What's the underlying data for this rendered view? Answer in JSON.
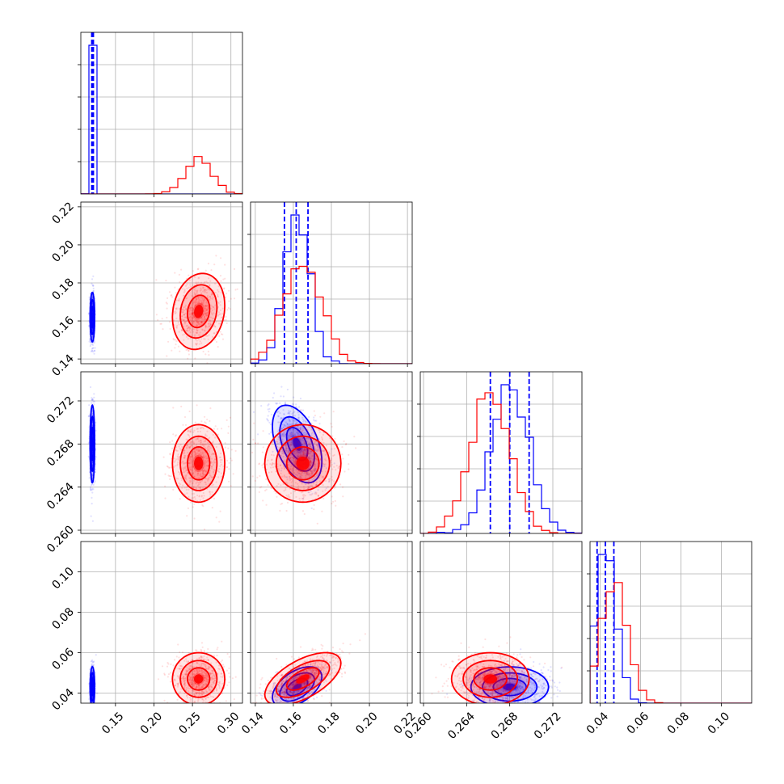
{
  "colors": {
    "series_a": "#0000ff",
    "series_b": "#ff0000"
  },
  "chart_data": {
    "type": "corner",
    "grid": true,
    "params": [
      {
        "range": [
          0.105,
          0.315
        ],
        "ticks": [
          0.15,
          0.2,
          0.25,
          0.3
        ],
        "tick_labels": [
          "0.15",
          "0.20",
          "0.25",
          "0.30"
        ]
      },
      {
        "range": [
          0.1375,
          0.2225
        ],
        "ticks": [
          0.14,
          0.16,
          0.18,
          0.2,
          0.22
        ],
        "tick_labels": [
          "0.14",
          "0.16",
          "0.18",
          "0.20",
          "0.22"
        ]
      },
      {
        "range": [
          0.2597,
          0.2747
        ],
        "ticks": [
          0.26,
          0.264,
          0.268,
          0.272
        ],
        "tick_labels": [
          "0.260",
          "0.264",
          "0.268",
          "0.272"
        ]
      },
      {
        "range": [
          0.035,
          0.115
        ],
        "ticks": [
          0.04,
          0.06,
          0.08,
          0.1
        ],
        "tick_labels": [
          "0.04",
          "0.06",
          "0.08",
          "0.10"
        ]
      }
    ],
    "series": [
      {
        "name": "",
        "color": "#0000ff",
        "mean": [
          0.12,
          0.162,
          0.268,
          0.043
        ],
        "std": [
          0.0015,
          0.0065,
          0.0018,
          0.005
        ],
        "quantiles": [
          [
            0.1192,
            0.1203,
            0.1213
          ],
          [
            0.1553,
            0.1615,
            0.1677
          ],
          [
            0.2662,
            0.268,
            0.2698
          ],
          [
            0.0385,
            0.0426,
            0.0468
          ]
        ],
        "corr": {
          "1-0": 0.0,
          "2-0": 0.0,
          "2-1": -0.45,
          "3-0": 0.0,
          "3-1": 0.5,
          "3-2": 0.0
        }
      },
      {
        "name": "",
        "color": "#ff0000",
        "mean": [
          0.258,
          0.165,
          0.2662,
          0.047
        ],
        "std": [
          0.017,
          0.01,
          0.0018,
          0.0065
        ],
        "corr": {
          "1-0": 0.15,
          "2-0": 0.0,
          "2-1": 0.0,
          "3-0": 0.0,
          "3-1": 0.6,
          "3-2": 0.0
        }
      }
    ]
  }
}
